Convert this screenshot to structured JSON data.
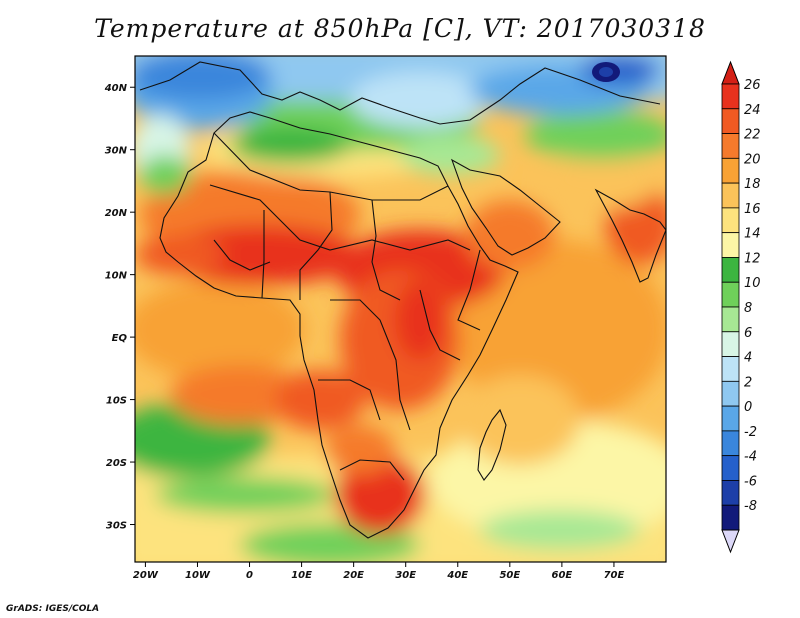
{
  "title": "Temperature at 850hPa [C], VT: 2017030318",
  "credit": "GrADS: IGES/COLA",
  "map": {
    "lon_range": [
      -22,
      80
    ],
    "lat_range": [
      -36,
      45
    ],
    "lat_ticks": [
      {
        "value": 40,
        "label": "40N"
      },
      {
        "value": 30,
        "label": "30N"
      },
      {
        "value": 20,
        "label": "20N"
      },
      {
        "value": 10,
        "label": "10N"
      },
      {
        "value": 0,
        "label": "EQ"
      },
      {
        "value": -10,
        "label": "10S"
      },
      {
        "value": -20,
        "label": "20S"
      },
      {
        "value": -30,
        "label": "30S"
      }
    ],
    "lon_ticks": [
      {
        "value": -20,
        "label": "20W"
      },
      {
        "value": -10,
        "label": "10W"
      },
      {
        "value": 0,
        "label": "0"
      },
      {
        "value": 10,
        "label": "10E"
      },
      {
        "value": 20,
        "label": "20E"
      },
      {
        "value": 30,
        "label": "30E"
      },
      {
        "value": 40,
        "label": "40E"
      },
      {
        "value": 50,
        "label": "50E"
      },
      {
        "value": 60,
        "label": "60E"
      },
      {
        "value": 70,
        "label": "70E"
      }
    ]
  },
  "colorbar": {
    "levels": [
      {
        "label": "26",
        "color": "#e8321e"
      },
      {
        "label": "24",
        "color": "#f05a23"
      },
      {
        "label": "22",
        "color": "#f57a2c"
      },
      {
        "label": "20",
        "color": "#f8a235"
      },
      {
        "label": "18",
        "color": "#fbc35a"
      },
      {
        "label": "16",
        "color": "#fde37e"
      },
      {
        "label": "14",
        "color": "#fcf6a6"
      },
      {
        "label": "12",
        "color": "#3cb540"
      },
      {
        "label": "10",
        "color": "#6fd05a"
      },
      {
        "label": "8",
        "color": "#a7e894"
      },
      {
        "label": "6",
        "color": "#d8f5e6"
      },
      {
        "label": "4",
        "color": "#bde3f7"
      },
      {
        "label": "2",
        "color": "#8fc8f0"
      },
      {
        "label": "0",
        "color": "#5aa7e8"
      },
      {
        "label": "-2",
        "color": "#3a86dc"
      },
      {
        "label": "-4",
        "color": "#2560cb"
      },
      {
        "label": "-6",
        "color": "#1d3fa8"
      },
      {
        "label": "-8",
        "color": "#121a7a"
      }
    ],
    "top_color": "#d42016",
    "bottom_color": "#dcd8f8"
  }
}
